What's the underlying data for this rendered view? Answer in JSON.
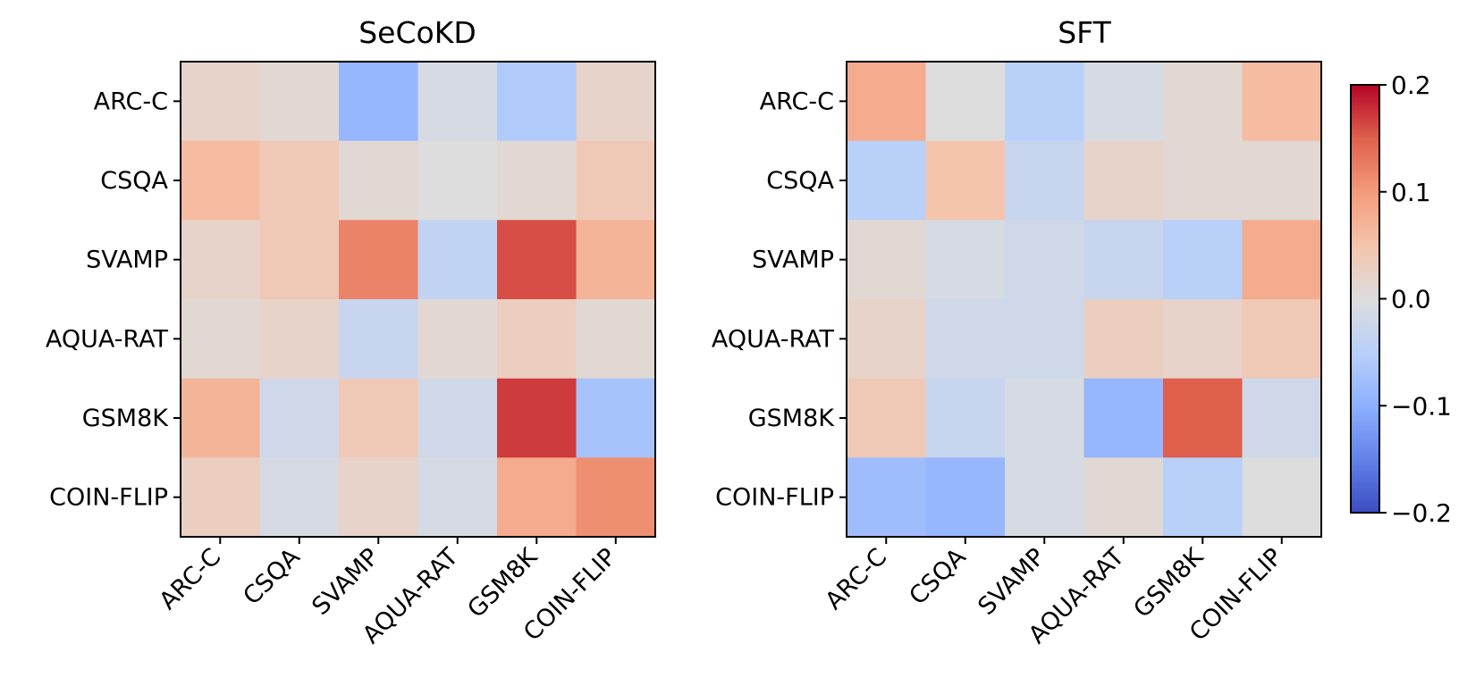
{
  "chart_data": [
    {
      "type": "heatmap",
      "title": "SeCoKD",
      "rows": [
        "ARC-C",
        "CSQA",
        "SVAMP",
        "AQUA-RAT",
        "GSM8K",
        "COIN-FLIP"
      ],
      "columns": [
        "ARC-C",
        "CSQA",
        "SVAMP",
        "AQUA-RAT",
        "GSM8K",
        "COIN-FLIP"
      ],
      "values": [
        [
          0.02,
          0.01,
          -0.09,
          -0.01,
          -0.06,
          0.02
        ],
        [
          0.06,
          0.04,
          0.01,
          0.0,
          0.01,
          0.04
        ],
        [
          0.02,
          0.04,
          0.12,
          -0.04,
          0.16,
          0.07
        ],
        [
          0.01,
          0.02,
          -0.03,
          0.01,
          0.03,
          0.01
        ],
        [
          0.07,
          -0.02,
          0.04,
          -0.02,
          0.17,
          -0.07
        ],
        [
          0.03,
          -0.01,
          0.02,
          -0.01,
          0.08,
          0.11
        ]
      ]
    },
    {
      "type": "heatmap",
      "title": "SFT",
      "rows": [
        "ARC-C",
        "CSQA",
        "SVAMP",
        "AQUA-RAT",
        "GSM8K",
        "COIN-FLIP"
      ],
      "columns": [
        "ARC-C",
        "CSQA",
        "SVAMP",
        "AQUA-RAT",
        "GSM8K",
        "COIN-FLIP"
      ],
      "values": [
        [
          0.08,
          0.0,
          -0.05,
          -0.01,
          0.01,
          0.06
        ],
        [
          -0.05,
          0.05,
          -0.03,
          0.02,
          0.01,
          0.01
        ],
        [
          0.01,
          -0.01,
          -0.02,
          -0.03,
          -0.05,
          0.08
        ],
        [
          0.02,
          -0.02,
          -0.02,
          0.03,
          0.02,
          0.04
        ],
        [
          0.04,
          -0.03,
          -0.01,
          -0.09,
          0.15,
          -0.02
        ],
        [
          -0.08,
          -0.09,
          -0.01,
          0.01,
          -0.05,
          0.0
        ]
      ]
    }
  ],
  "colorbar": {
    "colormap": "coolwarm",
    "min": -0.2,
    "max": 0.2,
    "ticks": [
      0.2,
      0.1,
      0.0,
      -0.1,
      -0.2
    ],
    "tick_labels": [
      "0.2",
      "0.1",
      "0.0",
      "−0.1",
      "−0.2"
    ]
  }
}
